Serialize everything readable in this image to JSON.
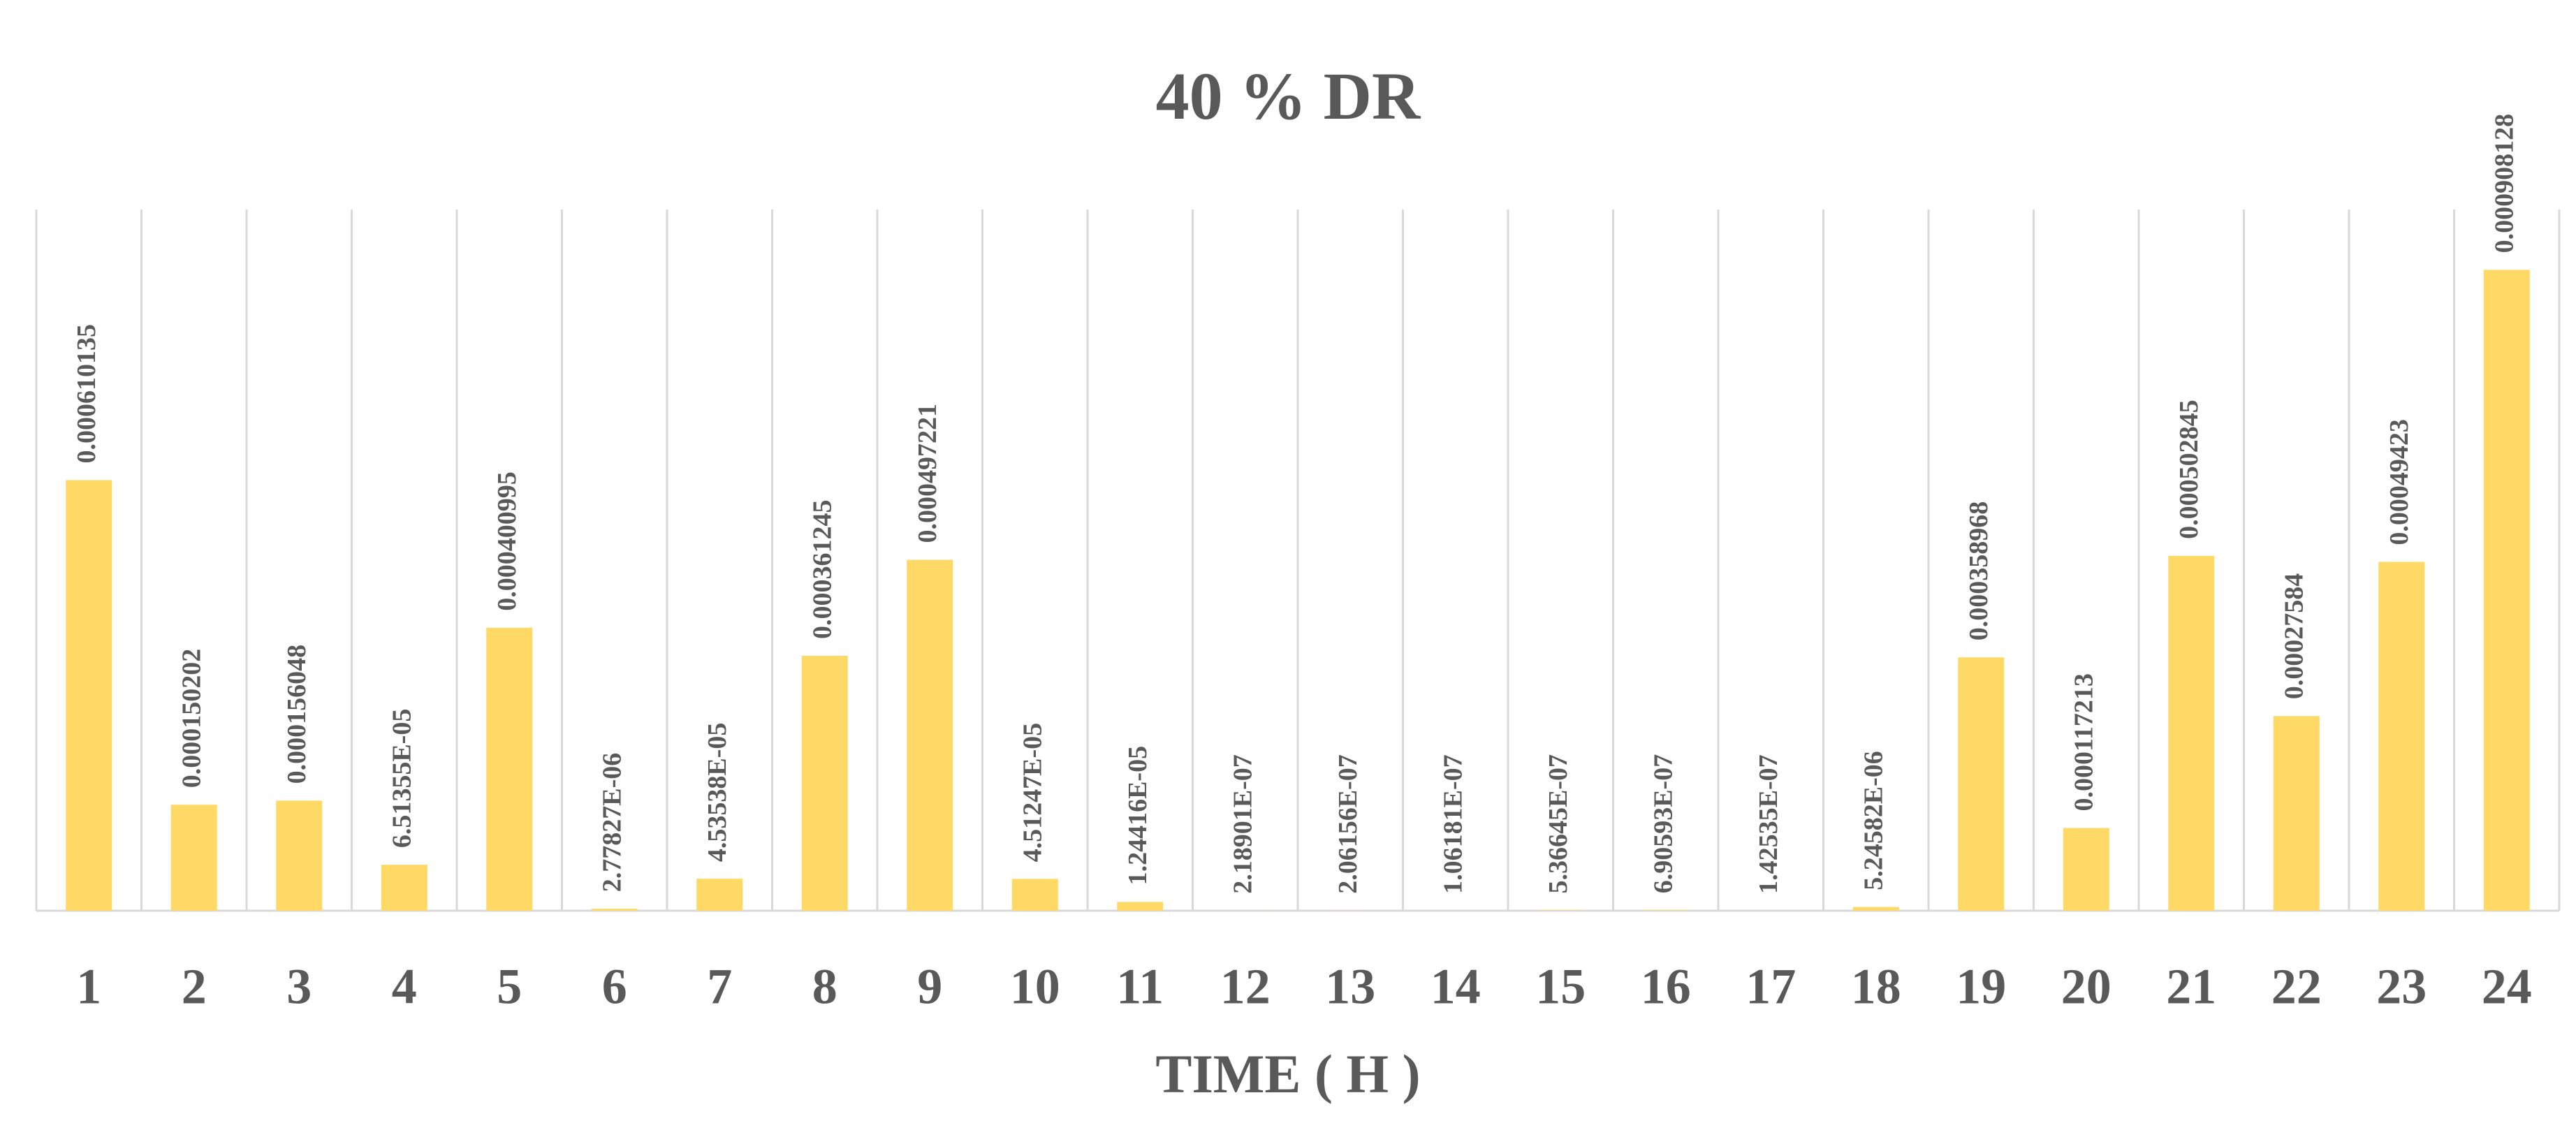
{
  "chart_data": {
    "type": "bar",
    "title": "40 % DR",
    "x_label": "TIME ( H )",
    "categories": [
      "1",
      "2",
      "3",
      "4",
      "5",
      "6",
      "7",
      "8",
      "9",
      "10",
      "11",
      "12",
      "13",
      "14",
      "15",
      "16",
      "17",
      "18",
      "19",
      "20",
      "21",
      "22",
      "23",
      "24"
    ],
    "values": [
      0.000610135,
      0.000150202,
      0.000156048,
      6.51355e-05,
      0.000400995,
      2.77827e-06,
      4.53538e-05,
      0.000361245,
      0.000497221,
      4.51247e-05,
      1.24416e-05,
      2.18901e-07,
      2.06156e-07,
      1.06181e-07,
      5.36645e-07,
      6.90593e-07,
      1.42535e-07,
      5.24582e-06,
      0.000358968,
      0.000117213,
      0.000502845,
      0.00027584,
      0.00049423,
      0.000908128
    ],
    "value_labels": [
      "0.000610135",
      "0.000150202",
      "0.000156048",
      "6.51355E-05",
      "0.000400995",
      "2.77827E-06",
      "4.53538E-05",
      "0.000361245",
      "0.000497221",
      "4.51247E-05",
      "1.24416E-05",
      "2.18901E-07",
      "2.06156E-07",
      "1.06181E-07",
      "5.36645E-07",
      "6.90593E-07",
      "1.42535E-07",
      "5.24582E-06",
      "0.000358968",
      "0.000117213",
      "0.000502845",
      "0.00027584",
      "0.00049423",
      "0.000908128"
    ],
    "color": "#ffd966",
    "grid": true
  }
}
